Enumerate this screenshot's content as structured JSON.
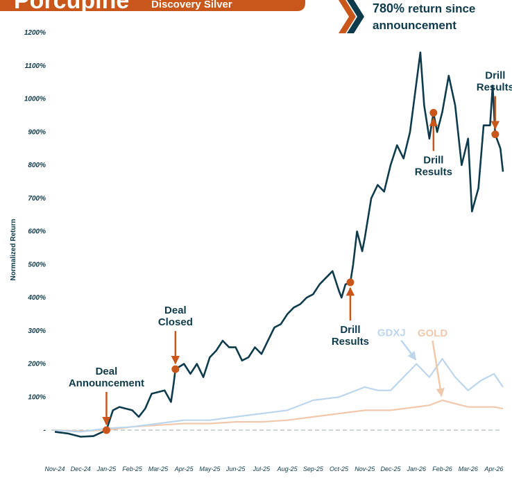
{
  "header": {
    "title": "Porcupine",
    "subtitle": "Discovery Silver"
  },
  "callout": {
    "value_text": "780%",
    "lines": [
      "return since",
      "announcement"
    ]
  },
  "chart_data": {
    "type": "line",
    "ylabel": "Normalized Return",
    "xlim": [
      -0.3,
      17.5
    ],
    "xticks": [
      {
        "value": 0,
        "label": "Nov-24"
      },
      {
        "value": 1,
        "label": "Dec-24"
      },
      {
        "value": 2,
        "label": "Jan-25"
      },
      {
        "value": 3,
        "label": "Feb-25"
      },
      {
        "value": 4,
        "label": "Mar-25"
      },
      {
        "value": 5,
        "label": "Apr-25"
      },
      {
        "value": 6,
        "label": "May-25"
      },
      {
        "value": 7,
        "label": "Jun-25"
      },
      {
        "value": 8,
        "label": "Jul-25"
      },
      {
        "value": 9,
        "label": "Aug-25"
      },
      {
        "value": 10,
        "label": "Sep-25"
      },
      {
        "value": 11,
        "label": "Oct-25"
      },
      {
        "value": 12,
        "label": "Nov-25"
      },
      {
        "value": 13,
        "label": "Dec-25"
      },
      {
        "value": 14,
        "label": "Jan-26"
      },
      {
        "value": 15,
        "label": "Feb-26"
      },
      {
        "value": 16,
        "label": "Mar-26"
      },
      {
        "value": 17,
        "label": "Apr-26"
      }
    ],
    "ylim": [
      -100,
      1200
    ],
    "yticks": [
      {
        "value": 0,
        "label": "-"
      },
      {
        "value": 100,
        "label": "100%"
      },
      {
        "value": 200,
        "label": "200%"
      },
      {
        "value": 300,
        "label": "300%"
      },
      {
        "value": 400,
        "label": "400%"
      },
      {
        "value": 500,
        "label": "500%"
      },
      {
        "value": 600,
        "label": "600%"
      },
      {
        "value": 700,
        "label": "700%"
      },
      {
        "value": 800,
        "label": "800%"
      },
      {
        "value": 900,
        "label": "900%"
      },
      {
        "value": 1000,
        "label": "1000%"
      },
      {
        "value": 1100,
        "label": "1100%"
      },
      {
        "value": 1200,
        "label": "1200%"
      }
    ],
    "series": [
      {
        "name": "GOLD",
        "color": "#f0c9ad",
        "x": [
          0,
          1,
          2,
          3,
          4,
          5,
          6,
          7,
          8,
          9,
          10,
          11,
          12,
          12.5,
          13,
          13.5,
          14,
          14.5,
          15,
          15.5,
          16,
          16.5,
          17,
          17.35
        ],
        "values": [
          0,
          -3,
          0,
          10,
          15,
          20,
          20,
          25,
          25,
          30,
          40,
          50,
          60,
          60,
          60,
          65,
          70,
          75,
          90,
          80,
          70,
          70,
          70,
          65
        ]
      },
      {
        "name": "GDXJ",
        "color": "#bcd6ee",
        "x": [
          0,
          1,
          2,
          3,
          4,
          5,
          6,
          7,
          8,
          9,
          10,
          11,
          12,
          12.5,
          13,
          13.5,
          14,
          14.5,
          15,
          15.5,
          16,
          16.5,
          17,
          17.35
        ],
        "values": [
          0,
          -5,
          5,
          10,
          20,
          30,
          30,
          40,
          50,
          60,
          90,
          100,
          130,
          120,
          120,
          160,
          200,
          160,
          215,
          160,
          120,
          150,
          170,
          130
        ]
      },
      {
        "name": "Discovery Silver",
        "color": "#0d3b4c",
        "x": [
          0,
          0.5,
          1,
          1.5,
          2,
          2.25,
          2.5,
          3,
          3.25,
          3.5,
          3.75,
          4,
          4.25,
          4.5,
          4.6,
          4.67,
          5,
          5.25,
          5.5,
          5.75,
          6,
          6.25,
          6.5,
          6.75,
          7,
          7.25,
          7.5,
          7.75,
          8,
          8.25,
          8.5,
          8.75,
          9,
          9.25,
          9.5,
          9.75,
          10,
          10.25,
          10.5,
          10.75,
          11,
          11.1,
          11.25,
          11.44,
          11.55,
          11.7,
          11.9,
          12,
          12.25,
          12.5,
          12.75,
          13,
          13.25,
          13.5,
          13.75,
          14,
          14.15,
          14.3,
          14.5,
          14.66,
          14.8,
          15,
          15.25,
          15.5,
          15.75,
          16,
          16.15,
          16.4,
          16.6,
          16.85,
          16.95,
          17.05,
          17.25,
          17.35
        ],
        "values": [
          -5,
          -10,
          -20,
          -18,
          0,
          60,
          70,
          60,
          40,
          65,
          110,
          115,
          120,
          85,
          140,
          184,
          200,
          170,
          200,
          160,
          220,
          240,
          270,
          250,
          250,
          210,
          220,
          250,
          230,
          270,
          310,
          320,
          350,
          370,
          380,
          400,
          410,
          440,
          460,
          480,
          420,
          400,
          440,
          446,
          500,
          600,
          540,
          580,
          700,
          740,
          720,
          800,
          860,
          820,
          900,
          1050,
          1140,
          980,
          880,
          958,
          900,
          960,
          1070,
          980,
          800,
          880,
          660,
          730,
          920,
          920,
          1040,
          893,
          850,
          780
        ]
      }
    ],
    "annotations": [
      {
        "lines": [
          "Deal",
          "Announcement"
        ],
        "x": 2,
        "y": 0,
        "position": "above"
      },
      {
        "lines": [
          "Deal",
          "Closed"
        ],
        "x": 4.67,
        "y": 184,
        "position": "above"
      },
      {
        "lines": [
          "Drill",
          "Results"
        ],
        "x": 11.44,
        "y": 446,
        "position": "below"
      },
      {
        "lines": [
          "Drill",
          "Results"
        ],
        "x": 14.66,
        "y": 958,
        "position": "below"
      },
      {
        "lines": [
          "Drill",
          "Results"
        ],
        "x": 17.05,
        "y": 893,
        "position": "above"
      }
    ],
    "annotation_color": "#c9561b"
  }
}
